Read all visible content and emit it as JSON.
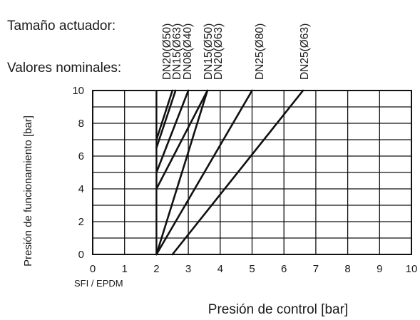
{
  "header": {
    "actuator_size_label": "Tamaño actuador:",
    "nominal_values_label": "Valores nominales:"
  },
  "chart_data": {
    "type": "line",
    "xlabel": "Presión de control [bar]",
    "ylabel": "Presión de funcionamiento [bar]",
    "material_note": "SFI / EPDM",
    "xlim": [
      0,
      10
    ],
    "ylim": [
      0,
      10
    ],
    "x_ticks": [
      "0",
      "1",
      "2",
      "3",
      "4",
      "5",
      "6",
      "7",
      "8",
      "9",
      "10"
    ],
    "y_ticks": [
      "0",
      "2",
      "4",
      "6",
      "8",
      "10"
    ],
    "grid": true,
    "line_color": "#111111",
    "series": [
      {
        "top_label": "DN20(Ø50)",
        "points": [
          [
            2.0,
            7.0
          ],
          [
            2.5,
            10.0
          ]
        ]
      },
      {
        "top_label": "DN15(Ø63)",
        "points": [
          [
            2.0,
            6.5
          ],
          [
            2.6,
            10.0
          ]
        ]
      },
      {
        "top_label": "DN08(Ø40)",
        "points": [
          [
            2.0,
            5.0
          ],
          [
            3.0,
            10.0
          ]
        ]
      },
      {
        "top_label": "DN15(Ø50)",
        "points": [
          [
            2.0,
            4.0
          ],
          [
            3.6,
            10.0
          ]
        ]
      },
      {
        "top_label": "DN20(Ø63)",
        "points": [
          [
            2.0,
            0.0
          ],
          [
            3.6,
            10.0
          ]
        ]
      },
      {
        "top_label": "DN25(Ø80)",
        "points": [
          [
            2.0,
            0.0
          ],
          [
            5.0,
            10.0
          ]
        ]
      },
      {
        "top_label": "DN25(Ø63)",
        "points": [
          [
            2.5,
            0.0
          ],
          [
            6.6,
            10.0
          ]
        ]
      }
    ]
  }
}
